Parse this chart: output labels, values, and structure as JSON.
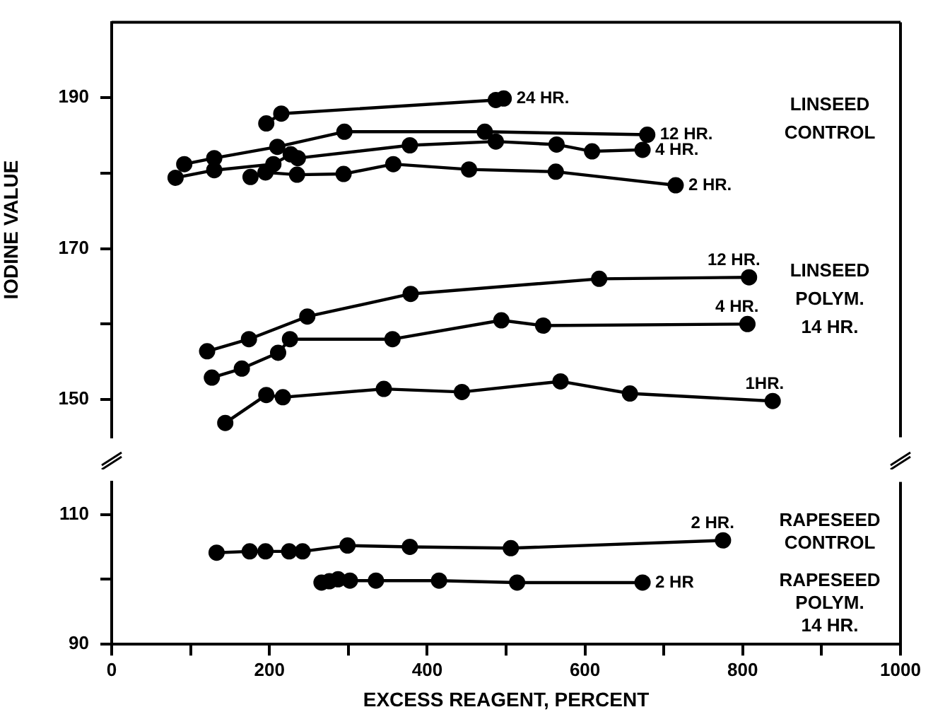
{
  "chart_data": [
    {
      "type": "line",
      "ylabel": "IODINE VALUE",
      "xlim": [
        0,
        1000
      ],
      "ylim": [
        145,
        200
      ],
      "yticks": [
        150,
        {
          "value": 160,
          "label": null
        },
        170,
        {
          "value": 180,
          "label": null
        },
        190
      ],
      "tick_labels": "y",
      "marker": "circle",
      "line_style": "solid",
      "legend": false,
      "grid": false,
      "series": [
        {
          "name": "24 HR.",
          "color": "#000000",
          "x": [
            196,
            215,
            487,
            497
          ],
          "values": [
            186.6,
            187.9,
            189.7,
            189.9
          ]
        },
        {
          "name": "12 HR.",
          "color": "#000000",
          "x": [
            92,
            130,
            210,
            295,
            473,
            679
          ],
          "values": [
            181.2,
            182.0,
            183.5,
            185.5,
            185.5,
            185.1
          ]
        },
        {
          "name": "4 HR.",
          "color": "#000000",
          "x": [
            81,
            130,
            205,
            227,
            236,
            378,
            487,
            564,
            609,
            673
          ],
          "values": [
            179.4,
            180.4,
            181.2,
            182.5,
            182.0,
            183.7,
            184.2,
            183.8,
            182.9,
            183.1
          ]
        },
        {
          "name": "2 HR.",
          "color": "#000000",
          "x": [
            176,
            195,
            235,
            294,
            357,
            453,
            563,
            715
          ],
          "values": [
            179.5,
            180.1,
            179.8,
            179.9,
            181.2,
            180.5,
            180.2,
            178.4
          ]
        },
        {
          "name": "12 HR.",
          "color": "#000000",
          "x": [
            121,
            174,
            248,
            379,
            618,
            808
          ],
          "values": [
            156.4,
            158.0,
            161.0,
            164.0,
            166.0,
            166.2
          ]
        },
        {
          "name": "4 HR.",
          "color": "#000000",
          "x": [
            127,
            165,
            211,
            226,
            356,
            494,
            547,
            806
          ],
          "values": [
            152.9,
            154.1,
            156.2,
            158.0,
            158.0,
            160.5,
            159.8,
            160.0
          ]
        },
        {
          "name": "1HR.",
          "color": "#000000",
          "x": [
            144,
            196,
            217,
            345,
            444,
            569,
            657,
            838
          ],
          "values": [
            146.9,
            150.6,
            150.3,
            151.4,
            151.0,
            152.4,
            150.8,
            149.8
          ]
        }
      ],
      "annotations": [
        "LINSEED\nCONTROL",
        "LINSEED\nPOLYM.\n14 HR."
      ]
    },
    {
      "type": "line",
      "xlabel": "EXCESS REAGENT, PERCENT",
      "xlim": [
        0,
        1000
      ],
      "xticks": [
        0,
        {
          "value": 100,
          "label": null
        },
        200,
        {
          "value": 300,
          "label": null
        },
        400,
        {
          "value": 500,
          "label": null
        },
        600,
        {
          "value": 700,
          "label": null
        },
        800,
        {
          "value": 900,
          "label": null
        },
        1000
      ],
      "ylim": [
        90,
        115
      ],
      "yticks": [
        90,
        {
          "value": 100,
          "label": null
        },
        110
      ],
      "marker": "circle",
      "line_style": "solid",
      "legend": false,
      "grid": false,
      "series": [
        {
          "name": "2 HR.",
          "color": "#000000",
          "x": [
            133,
            175,
            195,
            225,
            242,
            299,
            378,
            506,
            775
          ],
          "values": [
            104.1,
            104.3,
            104.3,
            104.3,
            104.3,
            105.2,
            105.0,
            104.8,
            106.0
          ]
        },
        {
          "name": "2 HR",
          "color": "#000000",
          "x": [
            266,
            276,
            287,
            302,
            335,
            415,
            514,
            673
          ],
          "values": [
            99.5,
            99.7,
            100.0,
            99.8,
            99.8,
            99.8,
            99.5,
            99.5
          ]
        }
      ],
      "annotations": [
        "RAPESEED\nCONTROL",
        "RAPESEED\nPOLYM.\n14 HR."
      ]
    }
  ]
}
